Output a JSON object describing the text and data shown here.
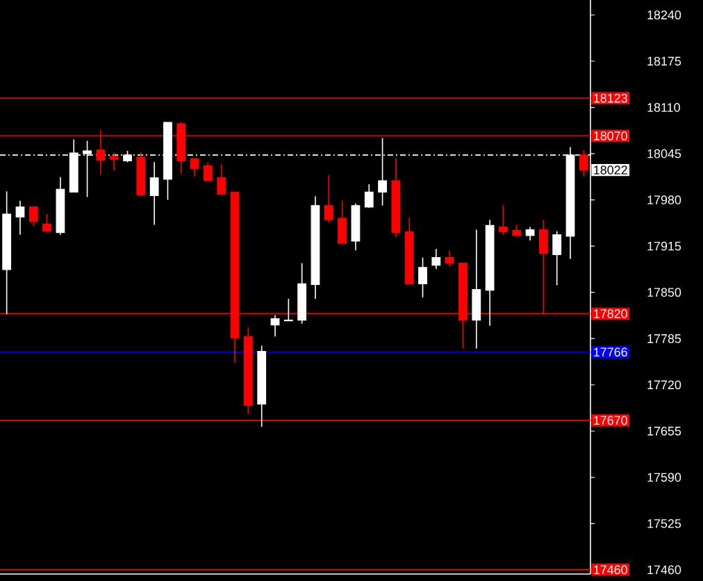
{
  "chart_data": {
    "type": "candlestick",
    "ylim": [
      17454,
      18261
    ],
    "tick_labels": "y",
    "yticks": [
      17460,
      17525,
      17590,
      17655,
      17720,
      17785,
      17850,
      17915,
      17980,
      18045,
      18110,
      18175,
      18240
    ],
    "categories": [
      null,
      null,
      null,
      null,
      null,
      null,
      null,
      null,
      null,
      null,
      null,
      null,
      null,
      null,
      null,
      null,
      null,
      null,
      null,
      null,
      null,
      null,
      null,
      null,
      null,
      null,
      null,
      null,
      null,
      null,
      null,
      null,
      null,
      null,
      null,
      null,
      null,
      null,
      null,
      null,
      null,
      null,
      null,
      null
    ],
    "ohlc": [
      [
        17882,
        17992,
        17819,
        17960
      ],
      [
        17956,
        17979,
        17931,
        17970
      ],
      [
        17970,
        17971,
        17943,
        17950
      ],
      [
        17946,
        17960,
        17936,
        17936
      ],
      [
        17934,
        18012,
        17931,
        17995
      ],
      [
        17991,
        18065,
        17991,
        18046
      ],
      [
        18045,
        18063,
        17984,
        18049
      ],
      [
        18050,
        18078,
        18016,
        18036
      ],
      [
        18041,
        18046,
        18021,
        18037
      ],
      [
        18035,
        18049,
        18033,
        18043
      ],
      [
        18040,
        18047,
        17985,
        17987
      ],
      [
        17986,
        18033,
        17945,
        18011
      ],
      [
        18009,
        18089,
        17980,
        18089
      ],
      [
        18087,
        18089,
        18017,
        18035
      ],
      [
        18038,
        18038,
        18013,
        18024
      ],
      [
        18028,
        18033,
        18007,
        18007
      ],
      [
        18011,
        18030,
        17988,
        17988
      ],
      [
        17991,
        17991,
        17751,
        17786
      ],
      [
        17788,
        17801,
        17679,
        17691
      ],
      [
        17693,
        17775,
        17661,
        17767
      ],
      [
        17804,
        17818,
        17788,
        17813
      ],
      [
        17810,
        17841,
        17810,
        17811
      ],
      [
        17811,
        17891,
        17806,
        17862
      ],
      [
        17861,
        17985,
        17841,
        17972
      ],
      [
        17972,
        18015,
        17948,
        17952
      ],
      [
        17954,
        17979,
        17919,
        17919
      ],
      [
        17922,
        17975,
        17909,
        17972
      ],
      [
        17970,
        18002,
        17969,
        17991
      ],
      [
        17991,
        18067,
        17972,
        18007
      ],
      [
        18007,
        18039,
        17927,
        17934
      ],
      [
        17935,
        17955,
        17862,
        17862
      ],
      [
        17862,
        17899,
        17843,
        17885
      ],
      [
        17888,
        17911,
        17883,
        17899
      ],
      [
        17899,
        17909,
        17886,
        17891
      ],
      [
        17891,
        17891,
        17771,
        17811
      ],
      [
        17811,
        17938,
        17771,
        17854
      ],
      [
        17853,
        17952,
        17803,
        17944
      ],
      [
        17942,
        17973,
        17931,
        17935
      ],
      [
        17937,
        17945,
        17929,
        17930
      ],
      [
        17930,
        17942,
        17923,
        17938
      ],
      [
        17938,
        17952,
        17819,
        17905
      ],
      [
        17903,
        17936,
        17860,
        17931
      ],
      [
        17929,
        18054,
        17897,
        18043
      ],
      [
        18043,
        18050,
        18013,
        18022
      ]
    ],
    "colors": [
      "#ffffff",
      "#ffffff",
      "#ff0000",
      "#ff0000",
      "#ffffff",
      "#ffffff",
      "#ffffff",
      "#ff0000",
      "#ff0000",
      "#ffffff",
      "#ff0000",
      "#ffffff",
      "#ffffff",
      "#ff0000",
      "#ff0000",
      "#ff0000",
      "#ff0000",
      "#ff0000",
      "#ff0000",
      "#ffffff",
      "#ffffff",
      "#ffffff",
      "#ffffff",
      "#ffffff",
      "#ff0000",
      "#ff0000",
      "#ffffff",
      "#ffffff",
      "#ffffff",
      "#ff0000",
      "#ff0000",
      "#ffffff",
      "#ffffff",
      "#ff0000",
      "#ff0000",
      "#ffffff",
      "#ffffff",
      "#ff0000",
      "#ff0000",
      "#ffffff",
      "#ff0000",
      "#ffffff",
      "#ffffff",
      "#ff0000"
    ],
    "ref_lines": [
      {
        "axis": "y",
        "value": 18123,
        "label": "18123",
        "color": "#ff0000"
      },
      {
        "axis": "y",
        "value": 18070,
        "label": "18070",
        "color": "#ff0000"
      },
      {
        "axis": "y",
        "value": 18043,
        "color": "#ffffff",
        "line_style": "dashed"
      },
      {
        "axis": "y",
        "value": 17820,
        "label": "17820",
        "color": "#ff0000"
      },
      {
        "axis": "y",
        "value": 17766,
        "label": "17766",
        "color": "#0000ff"
      },
      {
        "axis": "y",
        "value": 17670,
        "label": "17670",
        "color": "#ff0000"
      },
      {
        "axis": "y",
        "value": 17460,
        "label": "17460",
        "color": "#ff0000"
      }
    ],
    "annotations": [
      "18022"
    ]
  }
}
